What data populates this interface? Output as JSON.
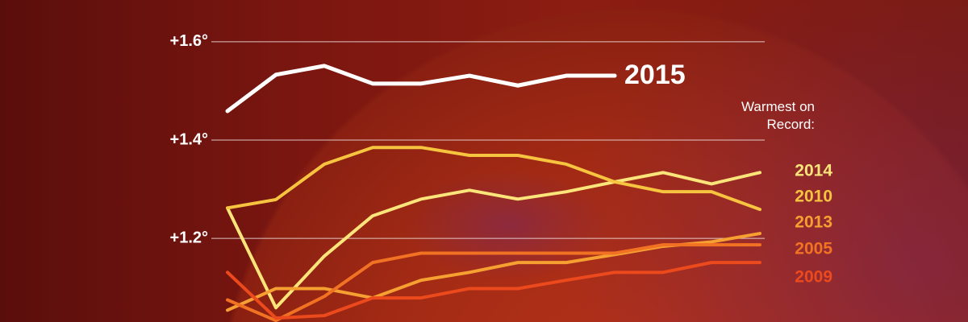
{
  "chart_data": {
    "type": "line",
    "annotation": "Warmest on Record:",
    "categories": [
      null,
      null,
      null,
      null,
      null,
      null,
      null,
      null,
      null,
      null,
      null,
      null
    ],
    "ylim": [
      1.03,
      1.685
    ],
    "yticks": [
      {
        "value": 1.2,
        "label": "+1.2°"
      },
      {
        "value": 1.4,
        "label": "+1.4°"
      },
      {
        "value": 1.6,
        "label": "+1.6°"
      }
    ],
    "grid": true,
    "series": [
      {
        "name": "2015",
        "color": "#ffffff",
        "values": [
          1.459,
          1.533,
          1.551,
          1.515,
          1.515,
          1.531,
          1.511,
          1.531,
          1.531,
          null,
          null,
          null
        ]
      },
      {
        "name": "2014",
        "color": "#fbe57a",
        "values": [
          1.262,
          1.059,
          1.164,
          1.246,
          1.28,
          1.298,
          1.28,
          1.295,
          1.315,
          1.334,
          1.311,
          1.334
        ]
      },
      {
        "name": "2010",
        "color": "#f7c440",
        "values": [
          1.262,
          1.279,
          1.351,
          1.385,
          1.385,
          1.369,
          1.369,
          1.351,
          1.315,
          1.295,
          1.295,
          1.259
        ]
      },
      {
        "name": "2013",
        "color": "#f7a032",
        "values": [
          1.054,
          1.098,
          1.098,
          1.079,
          1.115,
          1.131,
          1.151,
          1.151,
          1.167,
          1.184,
          1.193,
          1.21
        ]
      },
      {
        "name": "2005",
        "color": "#f27224",
        "values": [
          1.075,
          1.033,
          1.082,
          1.151,
          1.17,
          1.17,
          1.17,
          1.17,
          1.17,
          1.187,
          1.187,
          1.187
        ]
      },
      {
        "name": "2009",
        "color": "#ec4a1c",
        "values": [
          1.131,
          1.038,
          1.043,
          1.079,
          1.079,
          1.098,
          1.098,
          1.115,
          1.131,
          1.131,
          1.151,
          1.151
        ]
      }
    ]
  }
}
